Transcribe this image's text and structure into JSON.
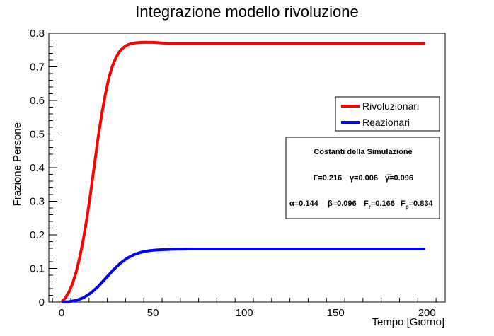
{
  "chart_data": {
    "type": "line",
    "title": "Integrazione modello rivoluzione",
    "xlabel": "Tempo [Giorno]",
    "ylabel": "Frazione Persone",
    "xlim": [
      -7,
      210
    ],
    "ylim": [
      0,
      0.8
    ],
    "x_ticks": [
      0,
      50,
      100,
      150,
      200
    ],
    "y_ticks": [
      0,
      0.1,
      0.2,
      0.3,
      0.4,
      0.5,
      0.6,
      0.7,
      0.8
    ],
    "x_tick_labels": [
      "0",
      "50",
      "100",
      "150",
      "200"
    ],
    "y_tick_labels": [
      "0",
      "0.1",
      "0.2",
      "0.3",
      "0.4",
      "0.5",
      "0.6",
      "0.7",
      "0.8"
    ],
    "grid": false,
    "legend_position": "right",
    "series": [
      {
        "name": "Rivoluzionari",
        "color": "#ff0000",
        "x": [
          0,
          2,
          4,
          6,
          8,
          10,
          12,
          14,
          16,
          18,
          20,
          22,
          24,
          26,
          28,
          30,
          32,
          34,
          36,
          38,
          40,
          42,
          44,
          46,
          48,
          50,
          55,
          60,
          80,
          100,
          120,
          140,
          160,
          180,
          199
        ],
        "y": [
          0,
          0.012,
          0.03,
          0.055,
          0.09,
          0.135,
          0.19,
          0.255,
          0.33,
          0.41,
          0.49,
          0.56,
          0.62,
          0.67,
          0.705,
          0.73,
          0.748,
          0.758,
          0.765,
          0.769,
          0.771,
          0.772,
          0.773,
          0.773,
          0.773,
          0.773,
          0.771,
          0.77,
          0.77,
          0.77,
          0.77,
          0.77,
          0.77,
          0.77,
          0.77
        ]
      },
      {
        "name": "Reazionari",
        "color": "#0000ff",
        "x": [
          0,
          4,
          8,
          12,
          16,
          20,
          24,
          28,
          32,
          36,
          40,
          44,
          48,
          52,
          56,
          60,
          70,
          80,
          100,
          120,
          140,
          160,
          180,
          199
        ],
        "y": [
          0,
          0.001,
          0.005,
          0.013,
          0.027,
          0.046,
          0.07,
          0.094,
          0.115,
          0.131,
          0.142,
          0.149,
          0.153,
          0.155,
          0.156,
          0.157,
          0.158,
          0.158,
          0.158,
          0.158,
          0.158,
          0.158,
          0.158,
          0.158
        ]
      }
    ],
    "annotation": {
      "title": "Costanti della Simulazione",
      "line1": [
        "Γ=0.216",
        "γ=0.006",
        "γ̅=0.096"
      ],
      "line2": {
        "alpha": "α=0.144",
        "beta": "β=0.096",
        "fr": "F",
        "fr_sub": "r",
        "fr_val": "=0.166",
        "fp": "F",
        "fp_sub": "p",
        "fp_val": "=0.834"
      }
    }
  }
}
